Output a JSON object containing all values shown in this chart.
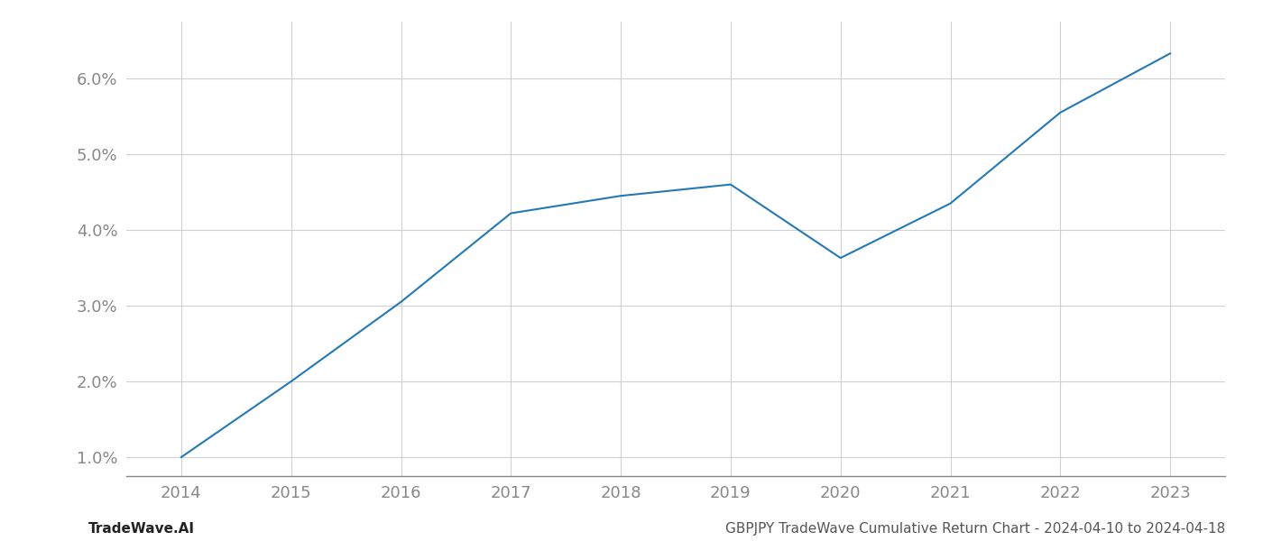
{
  "x": [
    2014,
    2015,
    2016,
    2017,
    2018,
    2019,
    2020,
    2021,
    2022,
    2023
  ],
  "y": [
    1.0,
    2.0,
    3.05,
    4.22,
    4.45,
    4.6,
    3.63,
    4.35,
    5.55,
    6.33
  ],
  "line_color": "#2479b5",
  "line_width": 1.5,
  "background_color": "#ffffff",
  "grid_color": "#d0d0d0",
  "footer_left": "TradeWave.AI",
  "footer_right": "GBPJPY TradeWave Cumulative Return Chart - 2024-04-10 to 2024-04-18",
  "xlim": [
    2013.5,
    2023.5
  ],
  "ylim": [
    0.75,
    6.75
  ],
  "yticks": [
    1.0,
    2.0,
    3.0,
    4.0,
    5.0,
    6.0
  ],
  "xticks": [
    2014,
    2015,
    2016,
    2017,
    2018,
    2019,
    2020,
    2021,
    2022,
    2023
  ],
  "tick_fontsize": 13,
  "footer_fontsize": 11,
  "footer_left_color": "#222222",
  "footer_right_color": "#555555"
}
